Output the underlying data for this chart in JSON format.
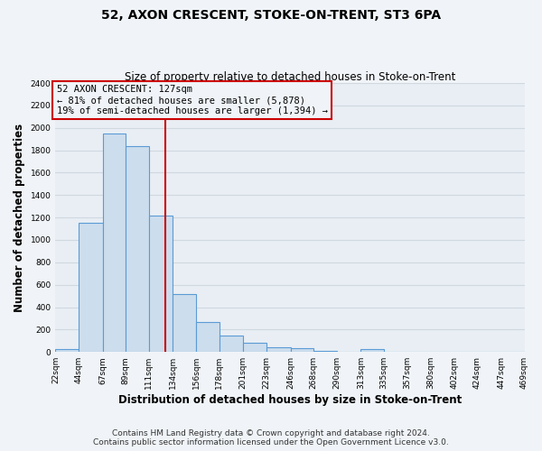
{
  "title": "52, AXON CRESCENT, STOKE-ON-TRENT, ST3 6PA",
  "subtitle": "Size of property relative to detached houses in Stoke-on-Trent",
  "xlabel": "Distribution of detached houses by size in Stoke-on-Trent",
  "ylabel": "Number of detached properties",
  "bin_edges": [
    22,
    44,
    67,
    89,
    111,
    134,
    156,
    178,
    201,
    223,
    246,
    268,
    290,
    313,
    335,
    357,
    380,
    402,
    424,
    447,
    469
  ],
  "bin_heights": [
    25,
    1155,
    1950,
    1840,
    1220,
    520,
    265,
    150,
    80,
    45,
    35,
    10,
    5,
    25,
    5,
    5,
    5,
    5,
    5,
    5
  ],
  "bar_color": "#ccdded",
  "bar_edge_color": "#5b9bd5",
  "vline_x": 127,
  "vline_color": "#cc0000",
  "annotation_title": "52 AXON CRESCENT: 127sqm",
  "annotation_line1": "← 81% of detached houses are smaller (5,878)",
  "annotation_line2": "19% of semi-detached houses are larger (1,394) →",
  "annotation_box_edge": "#cc0000",
  "ylim": [
    0,
    2400
  ],
  "yticks": [
    0,
    200,
    400,
    600,
    800,
    1000,
    1200,
    1400,
    1600,
    1800,
    2000,
    2200,
    2400
  ],
  "tick_labels": [
    "22sqm",
    "44sqm",
    "67sqm",
    "89sqm",
    "111sqm",
    "134sqm",
    "156sqm",
    "178sqm",
    "201sqm",
    "223sqm",
    "246sqm",
    "268sqm",
    "290sqm",
    "313sqm",
    "335sqm",
    "357sqm",
    "380sqm",
    "402sqm",
    "424sqm",
    "447sqm",
    "469sqm"
  ],
  "footer_line1": "Contains HM Land Registry data © Crown copyright and database right 2024.",
  "footer_line2": "Contains public sector information licensed under the Open Government Licence v3.0.",
  "bg_color": "#f0f4f8",
  "plot_bg_color": "#e8eef4",
  "grid_color": "#d0d8e0",
  "title_fontsize": 10,
  "subtitle_fontsize": 8.5,
  "axis_label_fontsize": 8.5,
  "tick_fontsize": 6.5,
  "footer_fontsize": 6.5
}
